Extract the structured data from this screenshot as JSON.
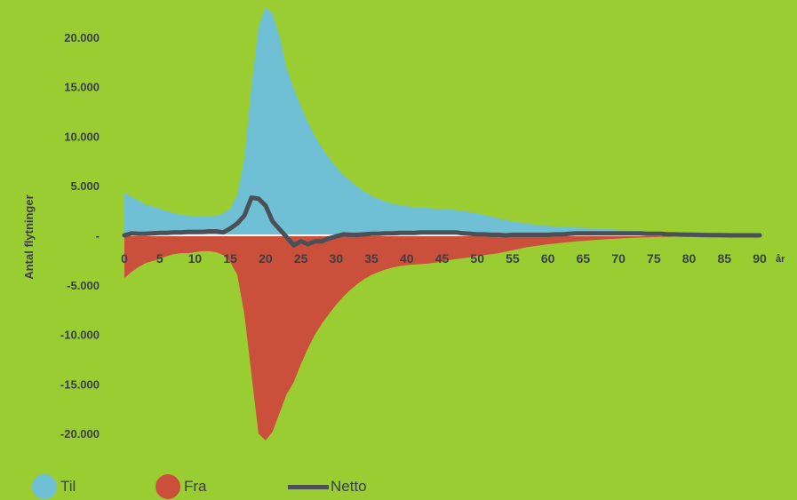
{
  "chart_data": {
    "type": "area",
    "ylabel": "Antal flytninger",
    "x_unit": "år",
    "xlim": [
      0,
      90
    ],
    "ylim": [
      -22000,
      22000
    ],
    "x_ticks": [
      0,
      5,
      10,
      15,
      20,
      25,
      30,
      35,
      40,
      45,
      50,
      55,
      60,
      65,
      70,
      75,
      80,
      85,
      90
    ],
    "y_ticks": [
      {
        "value": 20000,
        "label": "20.000"
      },
      {
        "value": 15000,
        "label": "15.000"
      },
      {
        "value": 10000,
        "label": "10.000"
      },
      {
        "value": 5000,
        "label": "5.000"
      },
      {
        "value": 0,
        "label": "-"
      },
      {
        "value": -5000,
        "label": "-5.000"
      },
      {
        "value": -10000,
        "label": "-10.000"
      },
      {
        "value": -15000,
        "label": "-15.000"
      },
      {
        "value": -20000,
        "label": "-20.000"
      }
    ],
    "grid": false,
    "legend_position": "bottom",
    "x": [
      0,
      1,
      2,
      3,
      4,
      5,
      6,
      7,
      8,
      9,
      10,
      11,
      12,
      13,
      14,
      15,
      16,
      17,
      18,
      19,
      20,
      21,
      22,
      23,
      24,
      25,
      26,
      27,
      28,
      29,
      30,
      31,
      32,
      33,
      34,
      35,
      36,
      37,
      38,
      39,
      40,
      41,
      42,
      43,
      44,
      45,
      46,
      47,
      48,
      49,
      50,
      51,
      52,
      53,
      54,
      55,
      56,
      57,
      58,
      59,
      60,
      61,
      62,
      63,
      64,
      65,
      66,
      67,
      68,
      69,
      70,
      71,
      72,
      73,
      74,
      75,
      76,
      77,
      78,
      79,
      80,
      81,
      82,
      83,
      84,
      85,
      86,
      87,
      88,
      89,
      90
    ],
    "series": [
      {
        "name": "Til",
        "color": "#6fc0d4",
        "values": [
          4300,
          3900,
          3500,
          3100,
          2900,
          2700,
          2450,
          2250,
          2100,
          2000,
          1950,
          1950,
          1950,
          2000,
          2200,
          2700,
          4100,
          7800,
          15000,
          21000,
          23000,
          22300,
          20000,
          16800,
          14800,
          13000,
          11400,
          10000,
          8800,
          7800,
          6900,
          6100,
          5500,
          4900,
          4400,
          4000,
          3700,
          3400,
          3200,
          3050,
          2950,
          2850,
          2800,
          2750,
          2700,
          2650,
          2600,
          2550,
          2450,
          2350,
          2200,
          2050,
          1900,
          1700,
          1550,
          1400,
          1300,
          1200,
          1100,
          1000,
          950,
          900,
          850,
          820,
          790,
          760,
          720,
          680,
          640,
          600,
          550,
          500,
          460,
          420,
          380,
          340,
          300,
          270,
          240,
          210,
          180,
          160,
          140,
          120,
          100,
          85,
          75,
          65,
          55,
          50,
          45
        ]
      },
      {
        "name": "Fra",
        "color": "#cb503c",
        "values": [
          -4300,
          -3700,
          -3200,
          -2800,
          -2600,
          -2400,
          -2100,
          -1900,
          -1800,
          -1800,
          -1700,
          -1600,
          -1600,
          -1700,
          -2000,
          -2700,
          -4000,
          -8000,
          -14000,
          -20000,
          -20700,
          -19800,
          -17900,
          -16000,
          -14800,
          -13000,
          -11400,
          -10000,
          -8900,
          -7900,
          -7000,
          -6200,
          -5500,
          -4900,
          -4400,
          -4000,
          -3700,
          -3450,
          -3250,
          -3100,
          -3000,
          -2950,
          -2900,
          -2850,
          -2750,
          -2650,
          -2500,
          -2400,
          -2300,
          -2200,
          -2100,
          -2000,
          -1900,
          -1800,
          -1650,
          -1500,
          -1350,
          -1200,
          -1100,
          -1000,
          -900,
          -820,
          -750,
          -680,
          -620,
          -560,
          -500,
          -450,
          -400,
          -360,
          -320,
          -280,
          -250,
          -220,
          -200,
          -180,
          -160,
          -140,
          -120,
          -100,
          -90,
          -80,
          -70,
          -60,
          -50,
          -45,
          -40,
          -35,
          -30,
          -25,
          -20
        ]
      },
      {
        "name": "Netto",
        "color": "#4a5056",
        "values": [
          0,
          200,
          150,
          150,
          200,
          250,
          250,
          300,
          300,
          350,
          350,
          350,
          400,
          400,
          300,
          700,
          1200,
          2000,
          3800,
          3700,
          3000,
          1400,
          600,
          -200,
          -1000,
          -600,
          -900,
          -600,
          -600,
          -300,
          -100,
          100,
          50,
          50,
          100,
          150,
          150,
          200,
          200,
          250,
          250,
          250,
          300,
          300,
          300,
          300,
          300,
          300,
          200,
          150,
          100,
          100,
          50,
          50,
          0,
          50,
          50,
          50,
          50,
          50,
          50,
          100,
          100,
          150,
          200,
          200,
          200,
          200,
          200,
          200,
          200,
          200,
          200,
          200,
          150,
          150,
          150,
          100,
          100,
          80,
          60,
          50,
          40,
          30,
          20,
          10,
          0,
          0,
          0,
          0,
          0
        ]
      }
    ]
  }
}
